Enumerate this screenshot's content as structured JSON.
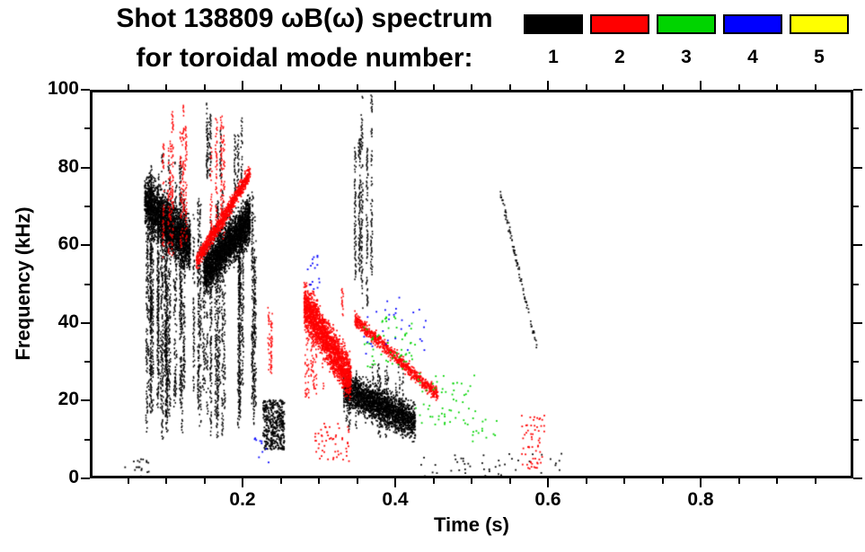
{
  "header": {
    "title_line1": "Shot 138809 ωB(ω) spectrum",
    "title_line2": "for toroidal mode number:"
  },
  "legend": {
    "modes": [
      {
        "label": "1",
        "color": "#000000"
      },
      {
        "label": "2",
        "color": "#ff0000"
      },
      {
        "label": "3",
        "color": "#00d400"
      },
      {
        "label": "4",
        "color": "#0000ff"
      },
      {
        "label": "5",
        "color": "#ffff00"
      }
    ]
  },
  "axes": {
    "x": {
      "label": "Time (s)",
      "min": 0,
      "max": 1.0,
      "minor_step": 0.05,
      "ticks": [
        {
          "value": 0.2,
          "label": "0.2"
        },
        {
          "value": 0.4,
          "label": "0.4"
        },
        {
          "value": 0.6,
          "label": "0.6"
        },
        {
          "value": 0.8,
          "label": "0.8"
        }
      ]
    },
    "y": {
      "label": "Frequency (kHz)",
      "min": 0,
      "max": 100,
      "minor_step": 10,
      "ticks": [
        {
          "value": 0,
          "label": "0"
        },
        {
          "value": 20,
          "label": "20"
        },
        {
          "value": 40,
          "label": "40"
        },
        {
          "value": 60,
          "label": "60"
        },
        {
          "value": 80,
          "label": "80"
        },
        {
          "value": 100,
          "label": "100"
        }
      ]
    }
  },
  "chart_data": {
    "type": "scatter",
    "title": "Shot 138809 ωB(ω) spectrum for toroidal mode number: 1 2 3 4 5",
    "xlabel": "Time (s)",
    "ylabel": "Frequency (kHz)",
    "xlim": [
      0,
      1.0
    ],
    "ylim": [
      0,
      100
    ],
    "grid": false,
    "legend_position": "top-right",
    "series": [
      {
        "name": "n=1",
        "mode": 1,
        "color": "#000000",
        "clusters": [
          {
            "shape": "streaks",
            "t": [
              0.068,
              0.132
            ],
            "f": [
              8,
              86
            ],
            "lines": 26,
            "density": 0.55
          },
          {
            "shape": "band",
            "t": [
              0.068,
              0.128
            ],
            "f_start": 72,
            "f_end": 60,
            "thickness": 20,
            "n": 2400
          },
          {
            "shape": "streaks",
            "t": [
              0.132,
              0.215
            ],
            "f": [
              10,
              76
            ],
            "lines": 26,
            "density": 0.5
          },
          {
            "shape": "band",
            "t": [
              0.146,
              0.207
            ],
            "f_start": 53,
            "f_end": 67,
            "thickness": 17,
            "n": 2600
          },
          {
            "shape": "streaks",
            "t": [
              0.15,
              0.17
            ],
            "f": [
              74,
              99
            ],
            "lines": 4,
            "density": 0.6
          },
          {
            "shape": "streaks",
            "t": [
              0.186,
              0.202
            ],
            "f": [
              72,
              97
            ],
            "lines": 3,
            "density": 0.6
          },
          {
            "shape": "streaks",
            "t": [
              0.343,
              0.368
            ],
            "f": [
              42,
              100
            ],
            "lines": 6,
            "density": 0.7
          },
          {
            "shape": "scatter",
            "t": [
              0.224,
              0.252
            ],
            "f": [
              7,
              20
            ],
            "n": 380
          },
          {
            "shape": "band",
            "t": [
              0.33,
              0.425
            ],
            "f_start": 23,
            "f_end": 14,
            "thickness": 13,
            "n": 2200
          },
          {
            "shape": "streaks",
            "t": [
              0.333,
              0.412
            ],
            "f": [
              9,
              30
            ],
            "lines": 14,
            "density": 0.45
          },
          {
            "shape": "band",
            "t": [
              0.537,
              0.585
            ],
            "f_start": 74,
            "f_end": 34,
            "thickness": 4,
            "n": 90
          },
          {
            "shape": "scatter",
            "t": [
              0.43,
              0.62
            ],
            "f": [
              0,
              6
            ],
            "n": 45
          },
          {
            "shape": "scatter",
            "t": [
              0.04,
              0.075
            ],
            "f": [
              0,
              5
            ],
            "n": 18
          }
        ]
      },
      {
        "name": "n=2",
        "mode": 2,
        "color": "#ff0000",
        "clusters": [
          {
            "shape": "streaks",
            "t": [
              0.092,
              0.128
            ],
            "f": [
              55,
              100
            ],
            "lines": 7,
            "density": 0.55
          },
          {
            "shape": "band",
            "t": [
              0.136,
              0.207
            ],
            "f_start": 56,
            "f_end": 79,
            "thickness": 6,
            "n": 950
          },
          {
            "shape": "streaks",
            "t": [
              0.15,
              0.175
            ],
            "f": [
              60,
              100
            ],
            "lines": 4,
            "density": 0.5
          },
          {
            "shape": "band",
            "t": [
              0.278,
              0.34
            ],
            "f_start": 45,
            "f_end": 25,
            "thickness": 16,
            "n": 1900
          },
          {
            "shape": "streaks",
            "t": [
              0.28,
              0.335
            ],
            "f": [
              18,
              50
            ],
            "lines": 8,
            "density": 0.4
          },
          {
            "shape": "band",
            "t": [
              0.345,
              0.455
            ],
            "f_start": 41,
            "f_end": 21,
            "thickness": 5,
            "n": 750
          },
          {
            "shape": "streaks",
            "t": [
              0.225,
              0.238
            ],
            "f": [
              25,
              47
            ],
            "lines": 3,
            "density": 0.4
          },
          {
            "shape": "scatter",
            "t": [
              0.565,
              0.595
            ],
            "f": [
              2,
              16
            ],
            "n": 60
          },
          {
            "shape": "scatter",
            "t": [
              0.29,
              0.34
            ],
            "f": [
              4,
              14
            ],
            "n": 55
          }
        ]
      },
      {
        "name": "n=3",
        "mode": 3,
        "color": "#00d400",
        "clusters": [
          {
            "shape": "scatter",
            "t": [
              0.357,
              0.425
            ],
            "f": [
              28,
              42
            ],
            "n": 60
          },
          {
            "shape": "scatter",
            "t": [
              0.425,
              0.505
            ],
            "f": [
              13,
              27
            ],
            "n": 55
          },
          {
            "shape": "scatter",
            "t": [
              0.5,
              0.535
            ],
            "f": [
              9,
              16
            ],
            "n": 14
          }
        ]
      },
      {
        "name": "n=4",
        "mode": 4,
        "color": "#0000ff",
        "clusters": [
          {
            "shape": "scatter",
            "t": [
              0.282,
              0.3
            ],
            "f": [
              48,
              58
            ],
            "n": 16
          },
          {
            "shape": "scatter",
            "t": [
              0.355,
              0.44
            ],
            "f": [
              32,
              47
            ],
            "n": 30
          },
          {
            "shape": "scatter",
            "t": [
              0.208,
              0.235
            ],
            "f": [
              3,
              12
            ],
            "n": 10
          }
        ]
      },
      {
        "name": "n=5",
        "mode": 5,
        "color": "#ffff00",
        "clusters": []
      }
    ]
  }
}
